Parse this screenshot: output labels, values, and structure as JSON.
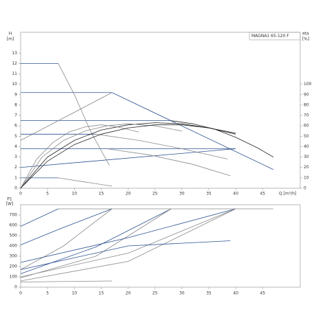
{
  "chart_data": [
    {
      "type": "line",
      "title": "MAGNA1 65-120 F",
      "ylabel": "H",
      "ylabel_unit": "[m]",
      "y2label": "eta",
      "y2label_unit": "[%]",
      "xlabel": "Q [m³/h]",
      "xlim": [
        0,
        52
      ],
      "xticks": [
        0,
        5,
        10,
        15,
        20,
        25,
        30,
        35,
        40,
        45
      ],
      "ylim": [
        0,
        15
      ],
      "yticks": [
        0,
        1,
        2,
        3,
        4,
        5,
        6,
        7,
        8,
        9,
        10,
        11,
        12,
        13
      ],
      "y2lim": [
        0,
        150
      ],
      "y2ticks": [
        0,
        10,
        20,
        30,
        40,
        50,
        60,
        70,
        80,
        90,
        100
      ],
      "series": [
        {
          "color": "#2a4f8f",
          "x": [
            0,
            17
          ],
          "values": [
            9.2,
            9.2
          ]
        },
        {
          "color": "#2a4f8f",
          "x": [
            17,
            47
          ],
          "values": [
            9.2,
            1.8
          ]
        },
        {
          "color": "#2a4f8f",
          "x": [
            0,
            28
          ],
          "values": [
            6.5,
            6.5
          ]
        },
        {
          "color": "#222222",
          "x": [
            28,
            32,
            36,
            40,
            44,
            47
          ],
          "values": [
            6.5,
            6.2,
            5.7,
            4.9,
            3.9,
            3.0
          ]
        },
        {
          "color": "#2a4f8f",
          "x": [
            0,
            40
          ],
          "values": [
            3.8,
            3.8
          ]
        },
        {
          "color": "#2a4f8f",
          "x": [
            0,
            40
          ],
          "values": [
            2.0,
            3.8
          ]
        },
        {
          "color": "#2a4f8f",
          "x": [
            0,
            7
          ],
          "values": [
            12,
            12
          ]
        },
        {
          "color": "#888888",
          "x": [
            7,
            10,
            13,
            16.5
          ],
          "values": [
            12,
            9,
            5.5,
            2.2
          ]
        },
        {
          "color": "#888888",
          "x": [
            0,
            17
          ],
          "values": [
            4.6,
            9.2
          ]
        },
        {
          "color": "#2a4f8f",
          "x": [
            0,
            14
          ],
          "values": [
            5.2,
            5.2
          ]
        },
        {
          "color": "#888888",
          "x": [
            14,
            22,
            30,
            38.5
          ],
          "values": [
            5.2,
            4.6,
            3.8,
            2.8
          ]
        },
        {
          "color": "#888888",
          "x": [
            16,
            24,
            32,
            39
          ],
          "values": [
            3.8,
            3.2,
            2.3,
            1.2
          ]
        },
        {
          "color": "#2a4f8f",
          "x": [
            0,
            7
          ],
          "values": [
            1,
            1
          ]
        },
        {
          "color": "#888888",
          "x": [
            7,
            12,
            17
          ],
          "values": [
            1,
            0.6,
            0.2
          ]
        },
        {
          "color": "#222222",
          "axis": "y2",
          "x": [
            0,
            5,
            10,
            15,
            20,
            25,
            30,
            35,
            40
          ],
          "values": [
            0,
            30,
            46,
            56,
            61,
            63,
            62,
            58,
            52
          ]
        },
        {
          "color": "#888888",
          "axis": "y2",
          "x": [
            0,
            4,
            8,
            12,
            16,
            20,
            25,
            30
          ],
          "values": [
            0,
            30,
            46,
            55,
            60,
            62,
            60,
            55
          ]
        },
        {
          "color": "#888888",
          "axis": "y2",
          "x": [
            0,
            3,
            6,
            9,
            12,
            15,
            18,
            22
          ],
          "values": [
            0,
            28,
            44,
            54,
            59,
            61,
            59,
            54
          ]
        },
        {
          "color": "#222222",
          "axis": "y2",
          "x": [
            0,
            5,
            10,
            15,
            20,
            25,
            30,
            35,
            40
          ],
          "values": [
            0,
            26,
            42,
            52,
            58,
            61,
            61,
            58,
            53
          ]
        }
      ]
    },
    {
      "type": "line",
      "ylabel": "P1",
      "ylabel_unit": "[W]",
      "xlim": [
        0,
        52
      ],
      "xticks": [
        0,
        5,
        10,
        15,
        20,
        25,
        30,
        35,
        40,
        45
      ],
      "ylim": [
        0,
        800
      ],
      "yticks": [
        0,
        100,
        200,
        300,
        400,
        500,
        600,
        700
      ],
      "series": [
        {
          "color": "#888888",
          "x": [
            7,
            47
          ],
          "values": [
            760,
            760
          ]
        },
        {
          "color": "#2a4f8f",
          "x": [
            0,
            7
          ],
          "values": [
            590,
            760
          ]
        },
        {
          "color": "#2a4f8f",
          "x": [
            0,
            8,
            17
          ],
          "values": [
            410,
            580,
            760
          ]
        },
        {
          "color": "#888888",
          "x": [
            0,
            8,
            17
          ],
          "values": [
            170,
            400,
            760
          ]
        },
        {
          "color": "#2a4f8f",
          "x": [
            0,
            14,
            28
          ],
          "values": [
            130,
            390,
            760
          ]
        },
        {
          "color": "#888888",
          "x": [
            0,
            14,
            28
          ],
          "values": [
            90,
            300,
            760
          ]
        },
        {
          "color": "#2a4f8f",
          "x": [
            0,
            20,
            40
          ],
          "values": [
            240,
            480,
            760
          ]
        },
        {
          "color": "#888888",
          "x": [
            0,
            20,
            40
          ],
          "values": [
            100,
            330,
            760
          ]
        },
        {
          "color": "#888888",
          "x": [
            0,
            20,
            40
          ],
          "values": [
            60,
            250,
            760
          ]
        },
        {
          "color": "#2a4f8f",
          "x": [
            0,
            20,
            39
          ],
          "values": [
            170,
            400,
            450
          ]
        },
        {
          "color": "#888888",
          "x": [
            0,
            17
          ],
          "values": [
            50,
            60
          ]
        }
      ]
    }
  ]
}
